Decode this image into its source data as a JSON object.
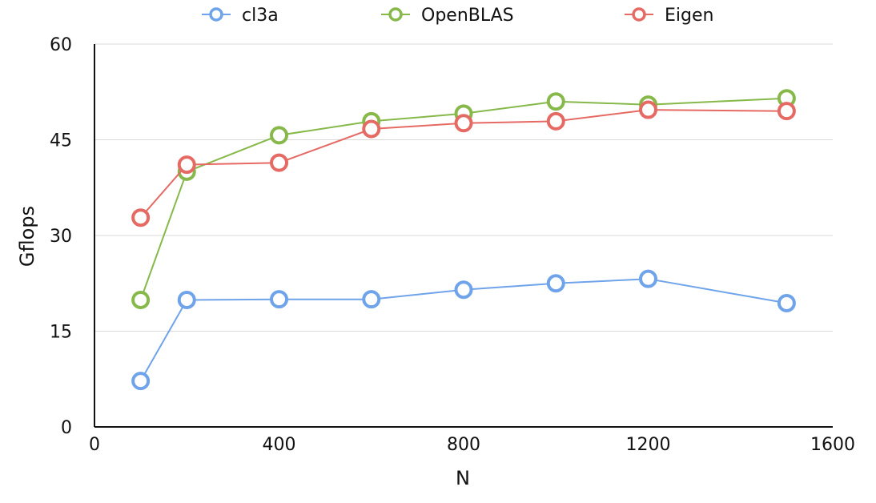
{
  "chart_data": {
    "type": "line",
    "xlabel": "N",
    "ylabel": "Gflops",
    "xlim": [
      0,
      1600
    ],
    "ylim": [
      0,
      60
    ],
    "x_ticks": [
      0,
      400,
      800,
      1200,
      1600
    ],
    "y_ticks": [
      0,
      15,
      30,
      45,
      60
    ],
    "grid": "horizontal",
    "legend_position": "top",
    "series": [
      {
        "name": "cl3a",
        "color": "#6fa3ea",
        "x": [
          100,
          200,
          400,
          600,
          800,
          1000,
          1200,
          1500
        ],
        "y": [
          7.2,
          19.9,
          20.0,
          20.0,
          21.5,
          22.5,
          23.2,
          19.4
        ]
      },
      {
        "name": "OpenBLAS",
        "color": "#86b94a",
        "x": [
          100,
          200,
          400,
          600,
          800,
          1000,
          1200,
          1500
        ],
        "y": [
          19.9,
          40.0,
          45.7,
          47.9,
          49.1,
          51.0,
          50.5,
          51.5
        ]
      },
      {
        "name": "Eigen",
        "color": "#e56a64",
        "x": [
          100,
          200,
          400,
          600,
          800,
          1000,
          1200,
          1500
        ],
        "y": [
          32.8,
          41.1,
          41.4,
          46.7,
          47.6,
          47.9,
          49.7,
          49.5
        ]
      }
    ]
  }
}
